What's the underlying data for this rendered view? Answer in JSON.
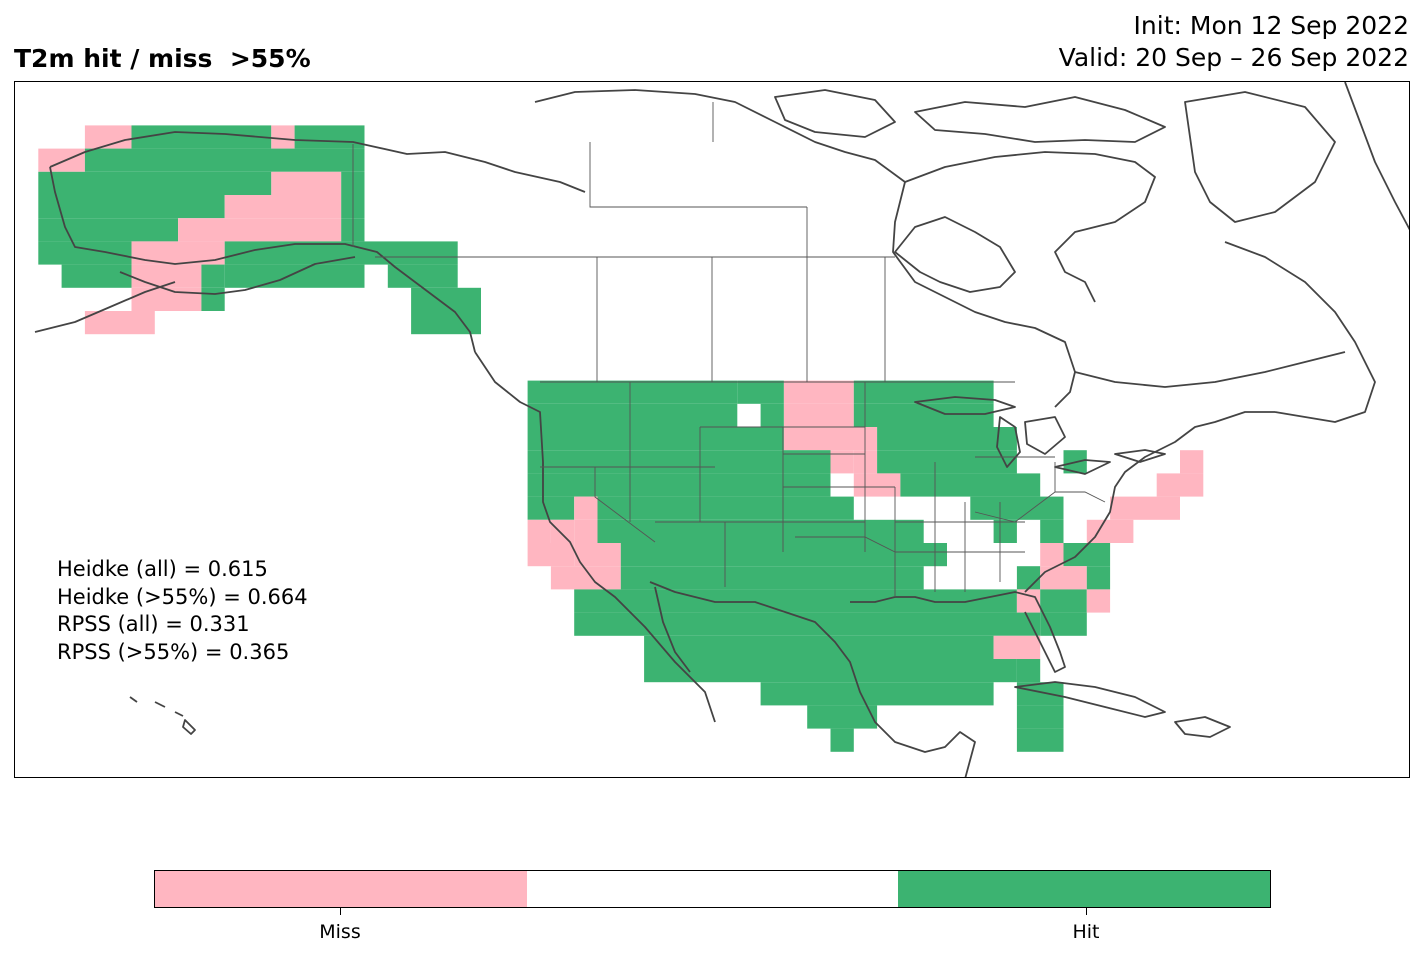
{
  "title": {
    "main": "T2m hit / miss  >55%",
    "init": "Init: Mon 12 Sep 2022",
    "valid": "Valid: 20 Sep – 26 Sep 2022"
  },
  "stats": [
    "Heidke (all) = 0.615",
    "Heidke (>55%) = 0.664",
    "RPSS (all) = 0.331",
    "RPSS (>55%) = 0.365"
  ],
  "colors": {
    "miss": "#FFB6C1",
    "neutral": "#FFFFFF",
    "hit": "#3CB371",
    "coast": "#444444"
  },
  "colorbar": {
    "segments": [
      "miss",
      "neutral",
      "hit"
    ],
    "labels": [
      "Miss",
      "Hit"
    ]
  }
}
